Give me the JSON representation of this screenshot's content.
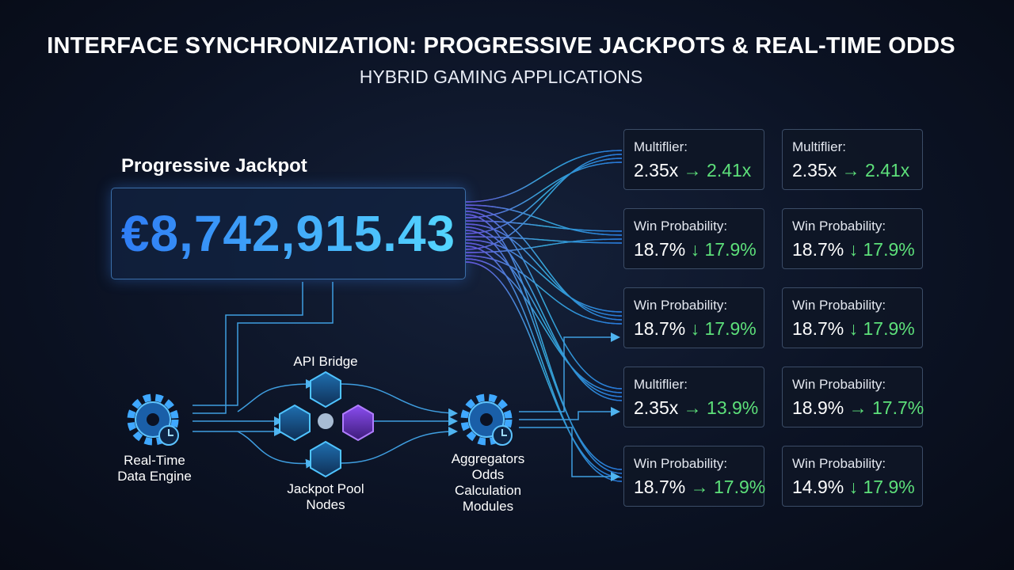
{
  "header": {
    "title": "INTERFACE SYNCHRONIZATION: PROGRESSIVE JACKPOTS & REAL-TIME ODDS",
    "subtitle": "HYBRID GAMING APPLICATIONS"
  },
  "jackpot": {
    "label": "Progressive Jackpot",
    "amount": "€8,742,915.43"
  },
  "nodes": [
    {
      "name": "engine",
      "label": [
        "Real-Time",
        "Data Engine"
      ]
    },
    {
      "name": "api",
      "label": [
        "API Bridge"
      ]
    },
    {
      "name": "pool",
      "label": [
        "Jackpot Pool",
        "Nodes"
      ]
    },
    {
      "name": "aggregators",
      "label": [
        "Aggregators",
        "Odds",
        "Calculation",
        "Modules"
      ]
    }
  ],
  "cards": [
    [
      {
        "label": "Multiflier:",
        "from": "2.35x",
        "arrow": "→",
        "to": "2.41x"
      },
      {
        "label": "Multiflier:",
        "from": "2.35x",
        "arrow": "→",
        "to": "2.41x"
      }
    ],
    [
      {
        "label": "Win Probability:",
        "from": "18.7%",
        "arrow": "↓",
        "to": "17.9%"
      },
      {
        "label": "Win Probability:",
        "from": "18.7%",
        "arrow": "↓",
        "to": "17.9%"
      }
    ],
    [
      {
        "label": "Win Probability:",
        "from": "18.7%",
        "arrow": "↓",
        "to": "17.9%"
      },
      {
        "label": "Win Probability:",
        "from": "18.7%",
        "arrow": "↓",
        "to": "17.9%"
      }
    ],
    [
      {
        "label": "Multiflier:",
        "from": "2.35x",
        "arrow": "→",
        "to": "13.9%"
      },
      {
        "label": "Win Probability:",
        "from": "18.9%",
        "arrow": "→",
        "to": "17.7%"
      }
    ],
    [
      {
        "label": "Win Probability:",
        "from": "18.7%",
        "arrow": "→",
        "to": "17.9%"
      },
      {
        "label": "Win Probability:",
        "from": "14.9%",
        "arrow": "↓",
        "to": "17.9%"
      }
    ]
  ]
}
